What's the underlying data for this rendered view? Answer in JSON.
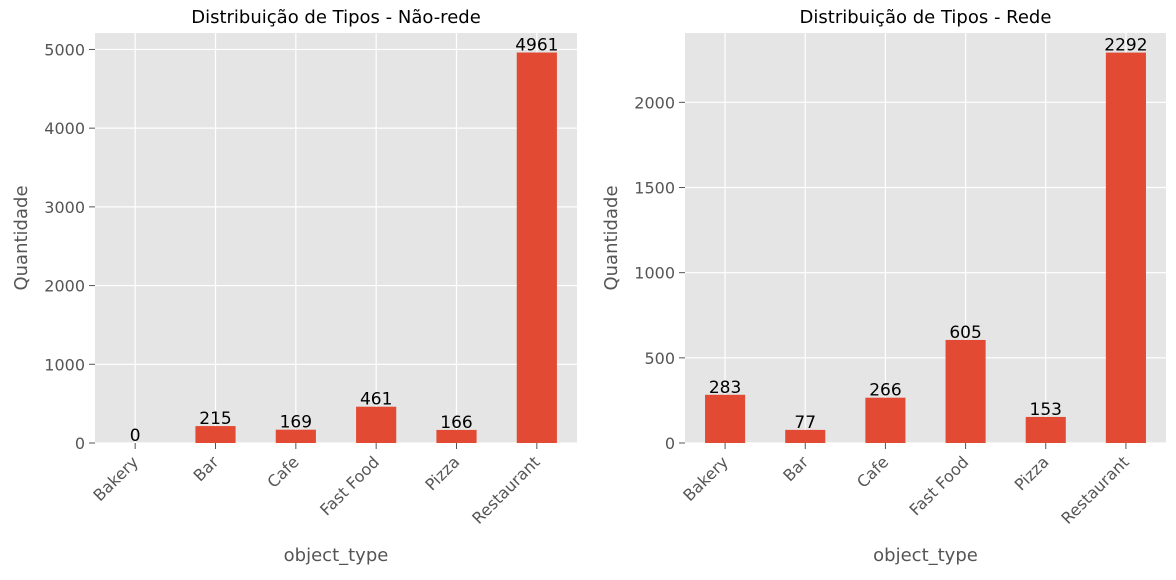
{
  "chart_data": [
    {
      "type": "bar",
      "title": "Distribuição de Tipos - Não-rede",
      "xlabel": "object_type",
      "ylabel": "Quantidade",
      "categories": [
        "Bakery",
        "Bar",
        "Cafe",
        "Fast Food",
        "Pizza",
        "Restaurant"
      ],
      "values": [
        0,
        215,
        169,
        461,
        166,
        4961
      ],
      "data_labels": [
        "0",
        "215",
        "169",
        "461",
        "166",
        "4961"
      ],
      "yticks": [
        0,
        1000,
        2000,
        3000,
        4000,
        5000
      ],
      "ylim": [
        0,
        5209
      ],
      "grid": true,
      "bar_color": "#e24a33",
      "background_color": "#e5e5e5"
    },
    {
      "type": "bar",
      "title": "Distribuição de Tipos - Rede",
      "xlabel": "object_type",
      "ylabel": "Quantidade",
      "categories": [
        "Bakery",
        "Bar",
        "Cafe",
        "Fast Food",
        "Pizza",
        "Restaurant"
      ],
      "values": [
        283,
        77,
        266,
        605,
        153,
        2292
      ],
      "data_labels": [
        "283",
        "77",
        "266",
        "605",
        "153",
        "2292"
      ],
      "yticks": [
        0,
        500,
        1000,
        1500,
        2000
      ],
      "ylim": [
        0,
        2407
      ],
      "grid": true,
      "bar_color": "#e24a33",
      "background_color": "#e5e5e5"
    }
  ]
}
